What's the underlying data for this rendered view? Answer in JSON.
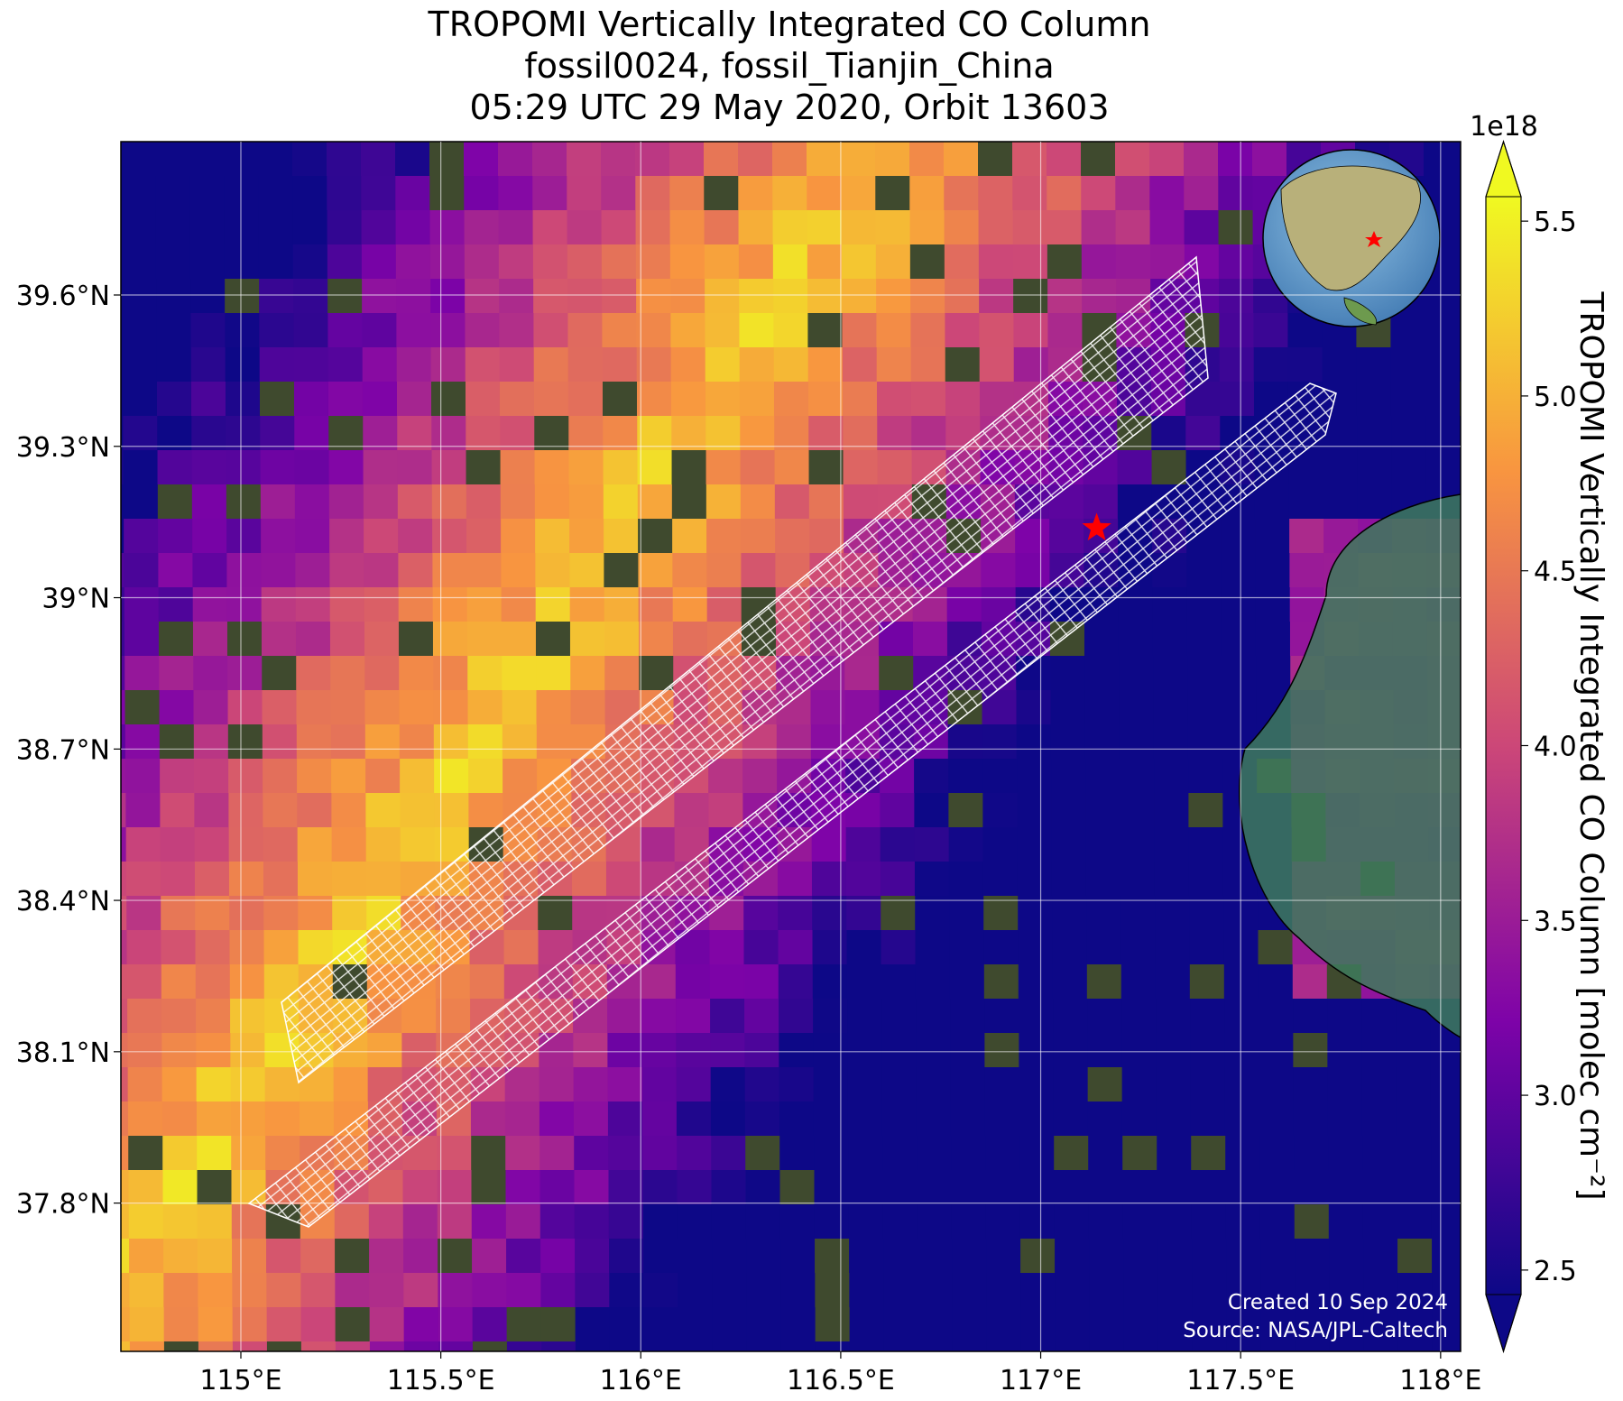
{
  "chart_data": {
    "type": "map",
    "title": [
      "TROPOMI Vertically Integrated CO Column",
      "fossil0024, fossil_Tianjin_China",
      "05:29 UTC 29 May 2020, Orbit 13603"
    ],
    "xlim": [
      114.7,
      118.05
    ],
    "ylim": [
      37.506,
      39.904
    ],
    "xticks": [
      {
        "value": 115,
        "label": "115°E"
      },
      {
        "value": 115.5,
        "label": "115.5°E"
      },
      {
        "value": 116,
        "label": "116°E"
      },
      {
        "value": 116.5,
        "label": "116.5°E"
      },
      {
        "value": 117,
        "label": "117°E"
      },
      {
        "value": 117.5,
        "label": "117.5°E"
      },
      {
        "value": 118,
        "label": "118°E"
      }
    ],
    "yticks": [
      {
        "value": 37.8,
        "label": "37.8°N"
      },
      {
        "value": 38.1,
        "label": "38.1°N"
      },
      {
        "value": 38.4,
        "label": "38.4°N"
      },
      {
        "value": 38.7,
        "label": "38.7°N"
      },
      {
        "value": 39,
        "label": "39°N"
      },
      {
        "value": 39.3,
        "label": "39.3°N"
      },
      {
        "value": 39.6,
        "label": "39.6°N"
      }
    ],
    "grid": true,
    "colorbar": {
      "label": "TROPOMI Vertically Integrated CO Column [molec cm⁻²]",
      "offset_label": "1e18",
      "clim": [
        2.43,
        5.57
      ],
      "ticks": [
        2.5,
        {
          "value": 3,
          "label": "3.0"
        },
        3.5,
        {
          "value": 4,
          "label": "4.0"
        },
        4.5,
        {
          "value": 5,
          "label": "5.0"
        },
        5.5
      ],
      "colormap": [
        "#0d0887",
        "#7e03a8",
        "#cc4778",
        "#f89540",
        "#f0f921"
      ]
    },
    "site": {
      "lon": 117.14,
      "lat": 39.138,
      "color": "#ff0000"
    },
    "annotations": [
      "Created 10 Sep 2024",
      "Source: NASA/JPL-Caltech"
    ]
  }
}
